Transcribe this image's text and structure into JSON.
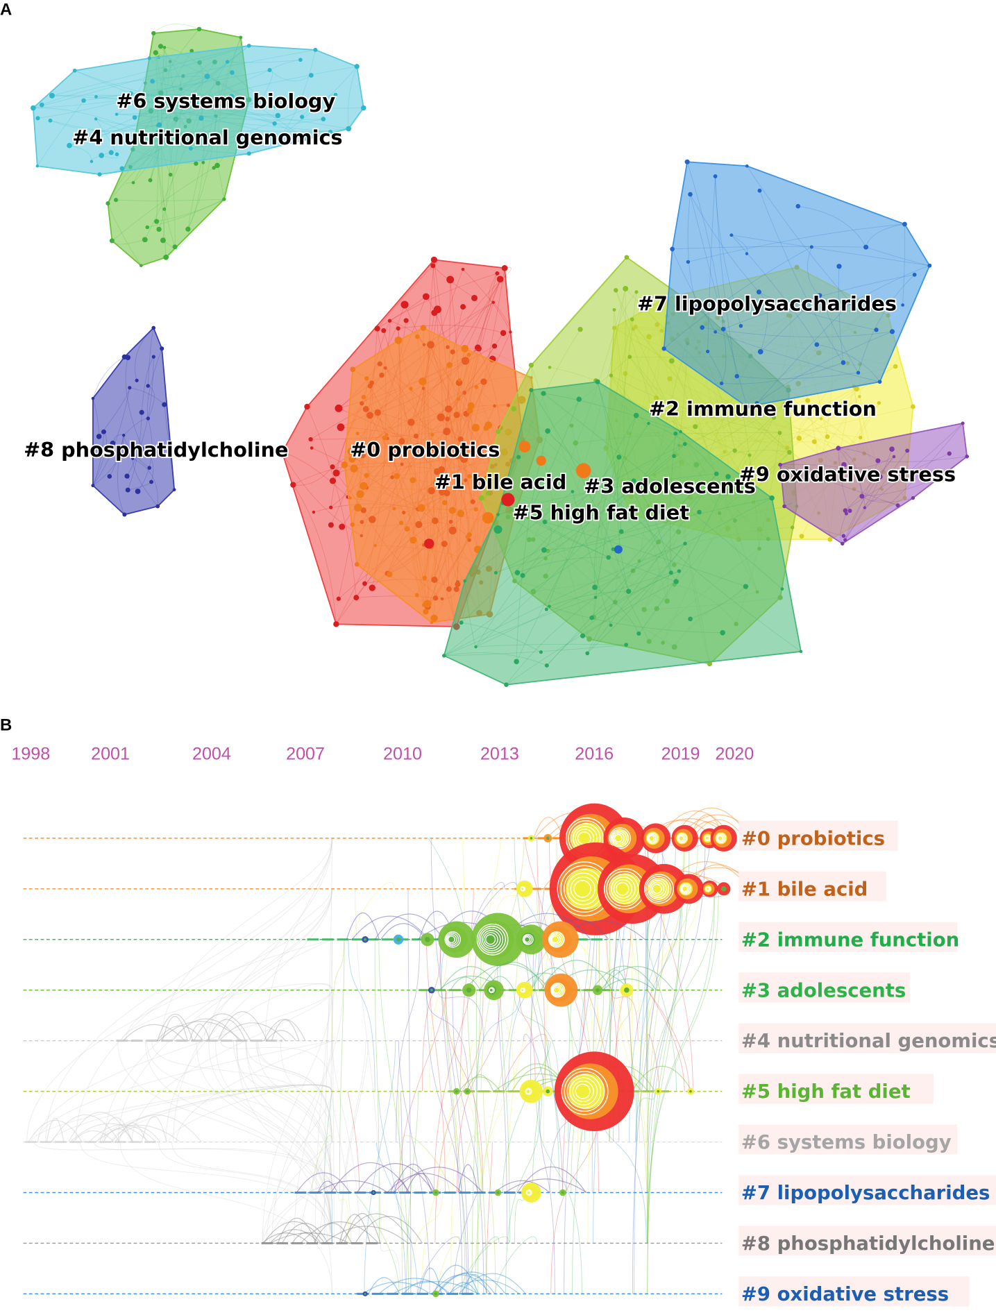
{
  "panel_a": {
    "letter": "A",
    "clusters": [
      {
        "id": "0",
        "label": "#0 probiotics",
        "color": "#ef4444"
      },
      {
        "id": "1",
        "label": "#1 bile acid",
        "color": "#f7902a"
      },
      {
        "id": "2",
        "label": "#2 immune function",
        "color": "#f2ef3a"
      },
      {
        "id": "3",
        "label": "#3 adolescents",
        "color": "#a6cf3a"
      },
      {
        "id": "4",
        "label": "#4 nutritional genomics",
        "color": "#6cc23a"
      },
      {
        "id": "5",
        "label": "#5 high fat diet",
        "color": "#48b87a"
      },
      {
        "id": "6",
        "label": "#6 systems biology",
        "color": "#59c9dc"
      },
      {
        "id": "7",
        "label": "#7 lipopolysaccharides",
        "color": "#3c95e0"
      },
      {
        "id": "8",
        "label": "#8 phosphatidylcholine",
        "color": "#3b3fae"
      },
      {
        "id": "9",
        "label": "#9 oxidative stress",
        "color": "#9b5bc0"
      }
    ]
  },
  "panel_b": {
    "letter": "B",
    "years": [
      "1998",
      "2001",
      "2004",
      "2007",
      "2010",
      "2013",
      "2016",
      "2019",
      "2020"
    ],
    "year_color": "#c050a8",
    "label_bg": "#fdf0ee",
    "rows": [
      {
        "label": "#0 probiotics",
        "color": "#c0621a",
        "line": "#f7902a"
      },
      {
        "label": "#1 bile acid",
        "color": "#c0621a",
        "line": "#f7902a"
      },
      {
        "label": "#2 immune function",
        "color": "#1fae4b",
        "line": "#48b86a"
      },
      {
        "label": "#3 adolescents",
        "color": "#2db34a",
        "line": "#6cc23a"
      },
      {
        "label": "#4 nutritional genomics",
        "color": "#8a8a8a",
        "line": "#cccccc"
      },
      {
        "label": "#5 high fat diet",
        "color": "#5ab532",
        "line": "#a6cf3a"
      },
      {
        "label": "#6 systems biology",
        "color": "#a5a5a5",
        "line": "#dddddd"
      },
      {
        "label": "#7 lipopolysaccharides",
        "color": "#1b5fb5",
        "line": "#3c95e0"
      },
      {
        "label": "#8 phosphatidylcholine",
        "color": "#777777",
        "line": "#999999"
      },
      {
        "label": "#9 oxidative stress",
        "color": "#1b5fb5",
        "line": "#3c95e0"
      }
    ]
  }
}
